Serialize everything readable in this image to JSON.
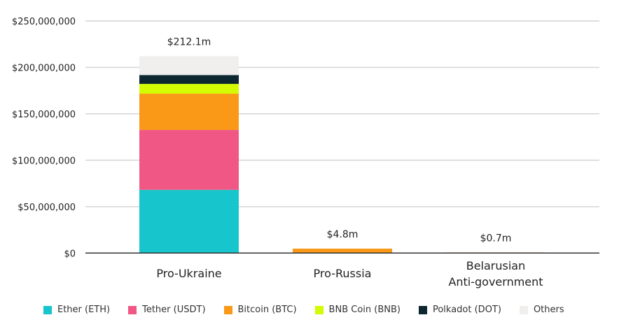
{
  "chart_data": {
    "type": "bar",
    "stacked": true,
    "title": "",
    "xlabel": "",
    "ylabel": "",
    "ylim": [
      0,
      250000000
    ],
    "yticks": [
      0,
      50000000,
      100000000,
      150000000,
      200000000,
      250000000
    ],
    "ytick_labels": [
      "$0",
      "$50,000,000",
      "$100,000,000",
      "$150,000,000",
      "$200,000,000",
      "$250,000,000"
    ],
    "categories": [
      [
        "Pro-Ukraine"
      ],
      [
        "Pro-Russia"
      ],
      [
        "Belarusian",
        "Anti-government"
      ]
    ],
    "totals_labels": [
      "$212.1m",
      "$4.8m",
      "$0.7m"
    ],
    "series": [
      {
        "name": "Ether (ETH)",
        "color": "#16c6cc",
        "values": [
          68100000,
          0,
          0
        ]
      },
      {
        "name": "Tether (USDT)",
        "color": "#f05784",
        "values": [
          64500000,
          0,
          0
        ]
      },
      {
        "name": "Bitcoin (BTC)",
        "color": "#f99917",
        "values": [
          39100000,
          4800000,
          700000
        ]
      },
      {
        "name": "BNB Coin (BNB)",
        "color": "#d4fc00",
        "values": [
          10500000,
          0,
          0
        ]
      },
      {
        "name": "Polkadot (DOT)",
        "color": "#0c2730",
        "values": [
          9500000,
          0,
          0
        ]
      },
      {
        "name": "Others",
        "color": "#f0efee",
        "values": [
          20400000,
          0,
          0
        ]
      }
    ],
    "grid": true,
    "legend_position": "bottom"
  }
}
